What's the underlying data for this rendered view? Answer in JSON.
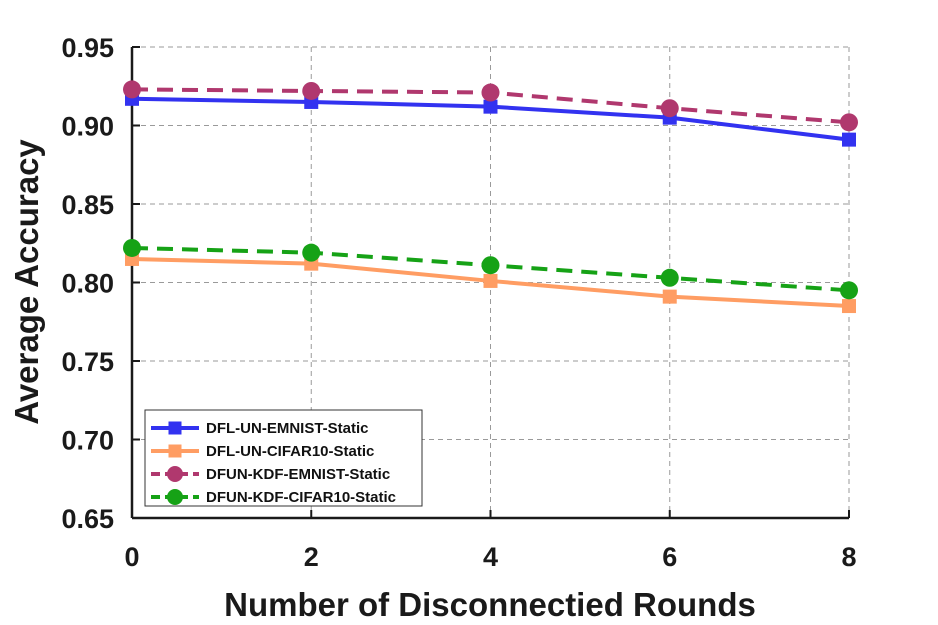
{
  "chart_data": {
    "type": "line",
    "xlabel": "Number of Disconnectied Rounds",
    "ylabel": "Average Accuracy",
    "x": [
      0,
      2,
      4,
      6,
      8
    ],
    "xlim": [
      0,
      8
    ],
    "ylim": [
      0.65,
      0.95
    ],
    "x_ticks": [
      "0",
      "2",
      "4",
      "6",
      "8"
    ],
    "y_ticks": [
      "0.65",
      "0.70",
      "0.75",
      "0.80",
      "0.85",
      "0.90",
      "0.95"
    ],
    "grid": true,
    "legend_position": "bottom-left",
    "series": [
      {
        "name": "DFL-UN-EMNIST-Static",
        "values": [
          0.917,
          0.915,
          0.912,
          0.905,
          0.891
        ],
        "color": "#3232f0",
        "line": "solid",
        "marker": "square"
      },
      {
        "name": "DFL-UN-CIFAR10-Static",
        "values": [
          0.815,
          0.812,
          0.801,
          0.791,
          0.785
        ],
        "color": "#ff9d63",
        "line": "solid",
        "marker": "square"
      },
      {
        "name": "DFUN-KDF-EMNIST-Static",
        "values": [
          0.923,
          0.922,
          0.921,
          0.911,
          0.902
        ],
        "color": "#b0386e",
        "line": "dashed",
        "marker": "circle"
      },
      {
        "name": "DFUN-KDF-CIFAR10-Static",
        "values": [
          0.822,
          0.819,
          0.811,
          0.803,
          0.795
        ],
        "color": "#16a216",
        "line": "dashed",
        "marker": "circle"
      }
    ]
  }
}
